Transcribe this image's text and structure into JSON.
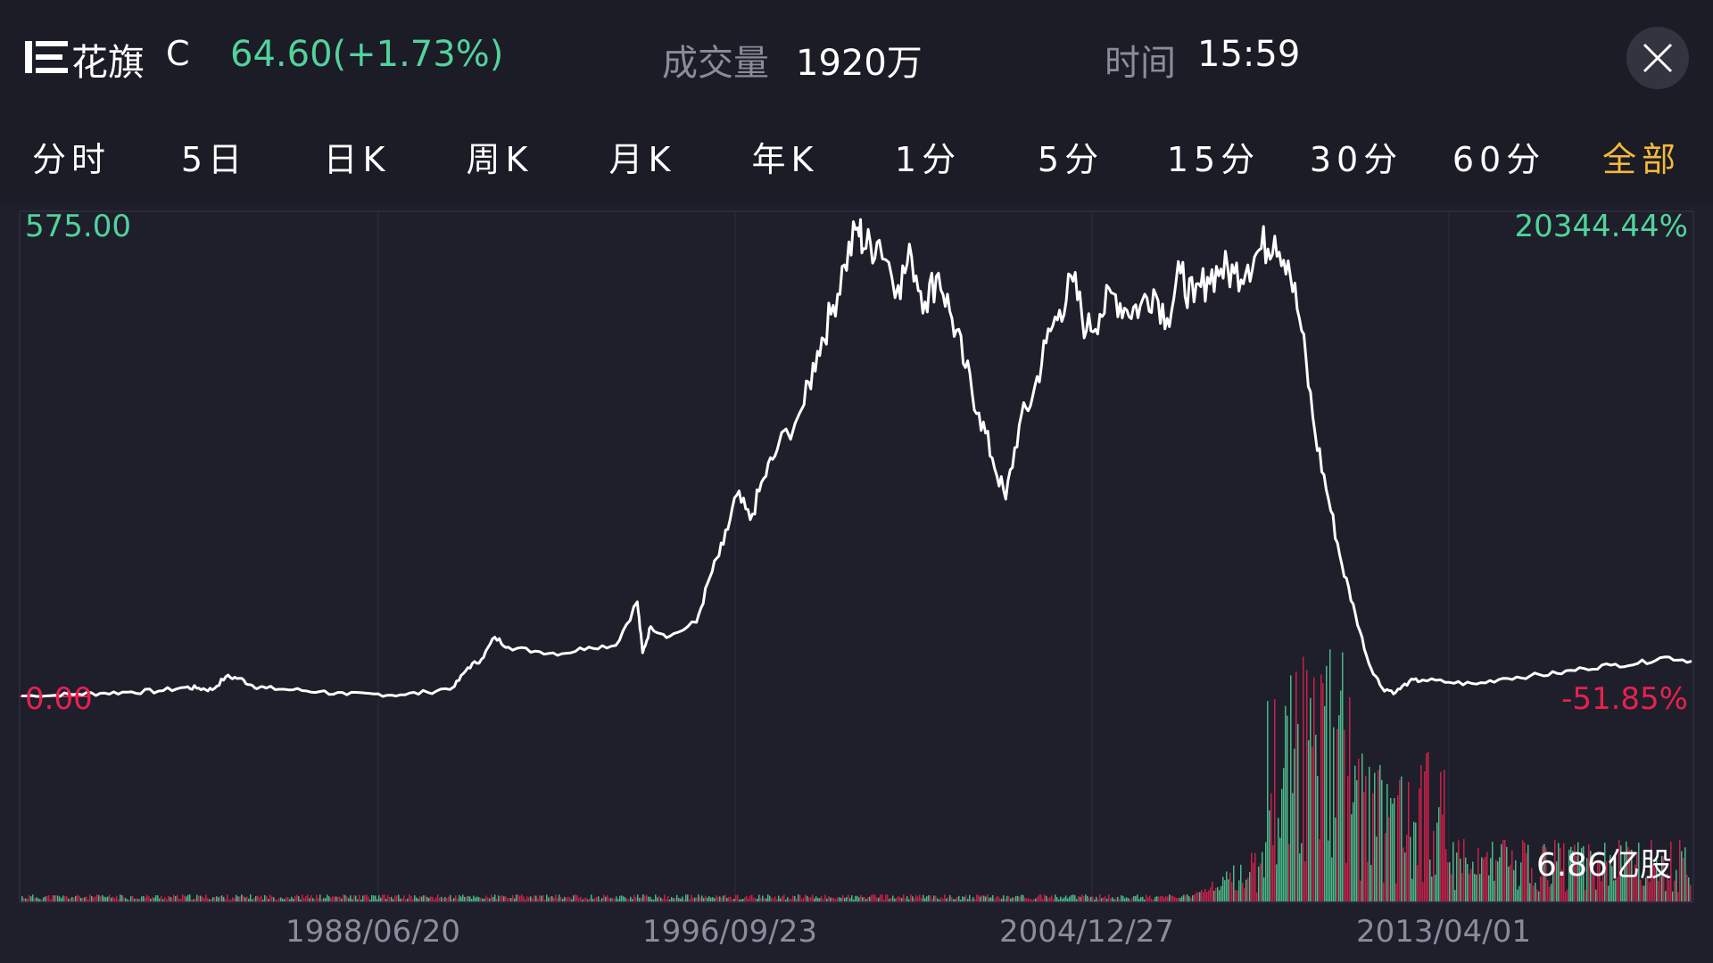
{
  "header": {
    "stock_name": "花旗",
    "stock_code": "C",
    "price_text": "64.60(+1.73%)",
    "volume_label": "成交量",
    "volume_value": "1920万",
    "time_label": "时间",
    "time_value": "15:59"
  },
  "tabs": [
    {
      "label": "分时",
      "active": false
    },
    {
      "label": "5日",
      "active": false
    },
    {
      "label": "日K",
      "active": false
    },
    {
      "label": "周K",
      "active": false
    },
    {
      "label": "月K",
      "active": false
    },
    {
      "label": "年K",
      "active": false
    },
    {
      "label": "1分",
      "active": false
    },
    {
      "label": "5分",
      "active": false
    },
    {
      "label": "15分",
      "active": false
    },
    {
      "label": "30分",
      "active": false
    },
    {
      "label": "60分",
      "active": false
    },
    {
      "label": "全部",
      "active": true
    }
  ],
  "chart": {
    "y_max_label": "575.00",
    "y_min_label": "0.00",
    "pct_max_label": "20344.44%",
    "pct_min_label": "-51.85%",
    "volume_label": "6.86亿股",
    "x_ticks": [
      "1988/06/20",
      "1996/09/23",
      "2004/12/27",
      "2013/04/01"
    ]
  },
  "colors": {
    "up": "#52d39b",
    "down": "#e8214f",
    "active_tab": "#f5b93a",
    "line": "#ffffff",
    "background": "#1e1f2a"
  },
  "chart_data": {
    "type": "line",
    "ylim": [
      0,
      575
    ],
    "series": [
      {
        "values": [
          [
            1980.9,
            0.5
          ],
          [
            1982.0,
            1.0
          ],
          [
            1983.0,
            3.0
          ],
          [
            1984.0,
            4.0
          ],
          [
            1985.0,
            5.5
          ],
          [
            1986.0,
            6.5
          ],
          [
            1987.0,
            11.0
          ],
          [
            1987.5,
            10.0
          ],
          [
            1988.0,
            8.0
          ],
          [
            1988.5,
            24.0
          ],
          [
            1989.0,
            22.0
          ],
          [
            1989.5,
            13.0
          ],
          [
            1990.0,
            10.0
          ],
          [
            1991.0,
            8.0
          ],
          [
            1992.0,
            6.0
          ],
          [
            1993.0,
            2.0
          ],
          [
            1994.0,
            3.0
          ],
          [
            1995.0,
            2.0
          ],
          [
            1996.0,
            5.0
          ],
          [
            1997.0,
            12.0
          ],
          [
            1997.5,
            35.0
          ],
          [
            1998.0,
            45.0
          ],
          [
            1998.5,
            72.0
          ],
          [
            1999.0,
            60.0
          ],
          [
            2000.0,
            55.0
          ],
          [
            2001.0,
            52.0
          ],
          [
            2002.0,
            60.0
          ],
          [
            2003.0,
            62.0
          ],
          [
            2003.8,
            115.0
          ],
          [
            2004.0,
            53.0
          ],
          [
            2004.3,
            85.0
          ],
          [
            2005.0,
            73.0
          ],
          [
            2006.0,
            90.0
          ],
          [
            2006.5,
            145.0
          ],
          [
            2007.0,
            185.0
          ],
          [
            2007.5,
            245.0
          ],
          [
            2008.0,
            215.0
          ],
          [
            2008.5,
            265.0
          ],
          [
            2009.0,
            300.0
          ],
          [
            2010.0,
            355.0
          ],
          [
            2010.5,
            420.0
          ],
          [
            2011.0,
            465.0
          ],
          [
            2011.5,
            525.0
          ],
          [
            2012.0,
            570.0
          ],
          [
            2012.3,
            545.0
          ],
          [
            2012.8,
            555.0
          ],
          [
            2013.5,
            500.0
          ],
          [
            2014.0,
            535.0
          ],
          [
            2014.5,
            480.0
          ],
          [
            2015.0,
            515.0
          ],
          [
            2015.5,
            460.0
          ],
          [
            2016.0,
            400.0
          ],
          [
            2016.5,
            345.0
          ],
          [
            2017.0,
            290.0
          ],
          [
            2017.5,
            240.0
          ],
          [
            2018.0,
            330.0
          ],
          [
            2018.5,
            365.0
          ],
          [
            2019.0,
            430.0
          ],
          [
            2019.5,
            470.0
          ],
          [
            2020.0,
            505.0
          ],
          [
            2020.5,
            445.0
          ],
          [
            2021.0,
            465.0
          ],
          [
            2021.5,
            490.0
          ],
          [
            2022.0,
            470.0
          ],
          [
            2022.5,
            475.0
          ],
          [
            2023.0,
            495.0
          ],
          [
            2023.5,
            460.0
          ],
          [
            2024.0,
            515.0
          ],
          [
            2024.5,
            480.0
          ],
          [
            2025.0,
            510.0
          ],
          [
            2025.5,
            520.0
          ],
          [
            2026.0,
            515.0
          ],
          [
            2026.5,
            525.0
          ],
          [
            2027.0,
            545.0
          ],
          [
            2027.5,
            560.0
          ],
          [
            2028.0,
            530.0
          ],
          [
            2028.5,
            445.0
          ],
          [
            2029.0,
            320.0
          ],
          [
            2029.5,
            240.0
          ],
          [
            2030.0,
            160.0
          ],
          [
            2030.5,
            100.0
          ],
          [
            2031.0,
            40.0
          ],
          [
            2031.5,
            10.0
          ],
          [
            2032.0,
            5.0
          ],
          [
            2032.5,
            18.0
          ],
          [
            2033.0,
            20.0
          ],
          [
            2034.0,
            17.0
          ],
          [
            2035.0,
            15.0
          ],
          [
            2036.0,
            22.0
          ],
          [
            2037.0,
            25.0
          ],
          [
            2038.0,
            28.0
          ],
          [
            2039.0,
            34.0
          ],
          [
            2040.0,
            38.0
          ],
          [
            2041.0,
            40.0
          ],
          [
            2042.0,
            48.0
          ],
          [
            2043.0,
            43.0
          ]
        ]
      }
    ]
  }
}
